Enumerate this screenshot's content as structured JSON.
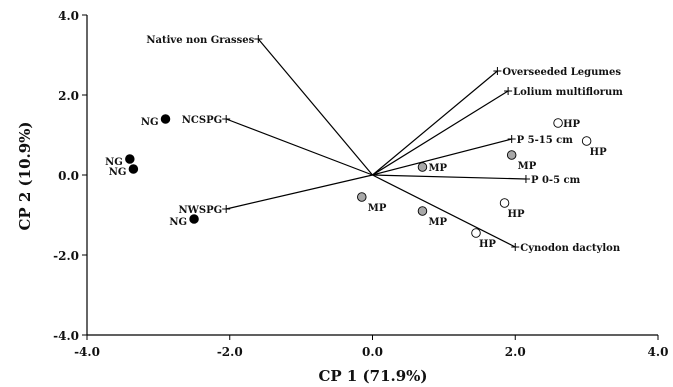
{
  "chart_data": {
    "type": "scatter",
    "subtype": "pca-biplot",
    "title": "",
    "xlabel": "CP 1 (71.9%)",
    "ylabel": "CP 2 (10.9%)",
    "xlim": [
      -4.0,
      4.0
    ],
    "ylim": [
      -4.0,
      4.0
    ],
    "xticks": [
      "-4.0",
      "-2.0",
      "0.0",
      "2.0",
      "4.0"
    ],
    "yticks": [
      "4.0",
      "2.0",
      "0.0",
      "-2.0",
      "-4.0"
    ],
    "grid": false,
    "colors": {
      "NG": "#000000",
      "MP": "#a8a8a8",
      "HP": "#ffffff",
      "axis": "#000000"
    },
    "loadings": [
      {
        "label": "Native non Grasses",
        "x": -1.6,
        "y": 3.4
      },
      {
        "label": "NCSPG",
        "x": -2.05,
        "y": 1.4
      },
      {
        "label": "NWSPG",
        "x": -2.05,
        "y": -0.85
      },
      {
        "label": "Overseeded Legumes",
        "x": 1.75,
        "y": 2.6
      },
      {
        "label": "Lolium multiflorum",
        "x": 1.9,
        "y": 2.1
      },
      {
        "label": "P 5-15 cm",
        "x": 1.95,
        "y": 0.9
      },
      {
        "label": "P 0-5 cm",
        "x": 2.15,
        "y": -0.1
      },
      {
        "label": "Cynodon dactylon",
        "x": 2.0,
        "y": -1.8
      }
    ],
    "points": [
      {
        "group": "NG",
        "label": "NG",
        "x": -2.9,
        "y": 1.4
      },
      {
        "group": "NG",
        "label": "NG",
        "x": -3.4,
        "y": 0.4
      },
      {
        "group": "NG",
        "label": "NG",
        "x": -3.35,
        "y": 0.15
      },
      {
        "group": "NG",
        "label": "NG",
        "x": -2.5,
        "y": -1.1
      },
      {
        "group": "MP",
        "label": "MP",
        "x": 0.7,
        "y": 0.2
      },
      {
        "group": "MP",
        "label": "MP",
        "x": 1.95,
        "y": 0.5
      },
      {
        "group": "MP",
        "label": "MP",
        "x": -0.15,
        "y": -0.55
      },
      {
        "group": "MP",
        "label": "MP",
        "x": 0.7,
        "y": -0.9
      },
      {
        "group": "HP",
        "label": "HP",
        "x": 2.6,
        "y": 1.3
      },
      {
        "group": "HP",
        "label": "HP",
        "x": 3.0,
        "y": 0.85
      },
      {
        "group": "HP",
        "label": "HP",
        "x": 1.85,
        "y": -0.7
      },
      {
        "group": "HP",
        "label": "HP",
        "x": 1.45,
        "y": -1.45
      }
    ]
  }
}
